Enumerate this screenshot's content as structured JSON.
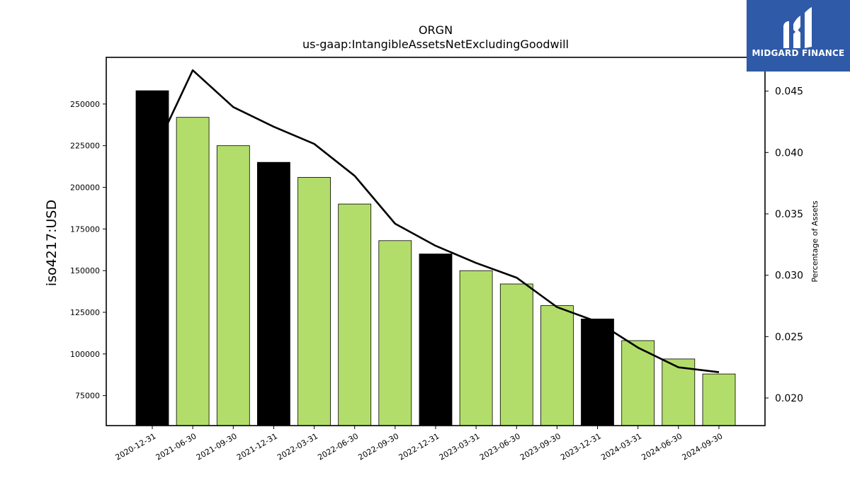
{
  "chart_data": {
    "type": "bar",
    "title": "ORGN",
    "subtitle": "us-gaap:IntangibleAssetsNetExcludingGoodwill",
    "ylabel": "iso4217:USD",
    "y2label": "Percentage of Assets",
    "categories": [
      "2020-12-31",
      "2021-06-30",
      "2021-09-30",
      "2021-12-31",
      "2022-03-31",
      "2022-06-30",
      "2022-09-30",
      "2022-12-31",
      "2023-03-31",
      "2023-06-30",
      "2023-09-30",
      "2023-12-31",
      "2024-03-31",
      "2024-06-30",
      "2024-09-30"
    ],
    "values": [
      258000,
      242000,
      225000,
      215000,
      206000,
      190000,
      168000,
      160000,
      150000,
      142000,
      129000,
      121000,
      108000,
      97000,
      88000
    ],
    "bar_colors": [
      "#000000",
      "#b3dd6a",
      "#b3dd6a",
      "#000000",
      "#b3dd6a",
      "#b3dd6a",
      "#b3dd6a",
      "#000000",
      "#b3dd6a",
      "#b3dd6a",
      "#b3dd6a",
      "#000000",
      "#b3dd6a",
      "#b3dd6a",
      "#b3dd6a"
    ],
    "ylim": [
      57000,
      278000
    ],
    "yticks": [
      75000,
      100000,
      125000,
      150000,
      175000,
      200000,
      225000,
      250000
    ],
    "line": {
      "name": "Percentage of Assets",
      "values": [
        0.0397,
        0.0467,
        0.0437,
        0.0421,
        0.0407,
        0.0381,
        0.0342,
        0.0324,
        0.031,
        0.0298,
        0.0274,
        0.0262,
        0.0241,
        0.0225,
        0.0221
      ]
    },
    "y2lim": [
      0.01775,
      0.04775
    ],
    "y2ticks": [
      0.02,
      0.025,
      0.03,
      0.035,
      0.04,
      0.045
    ],
    "y2ticklabels": [
      "0.020",
      "0.025",
      "0.030",
      "0.035",
      "0.040",
      "0.045"
    ],
    "grid": false
  },
  "logo": {
    "text": "MIDGARD FINANCE"
  }
}
